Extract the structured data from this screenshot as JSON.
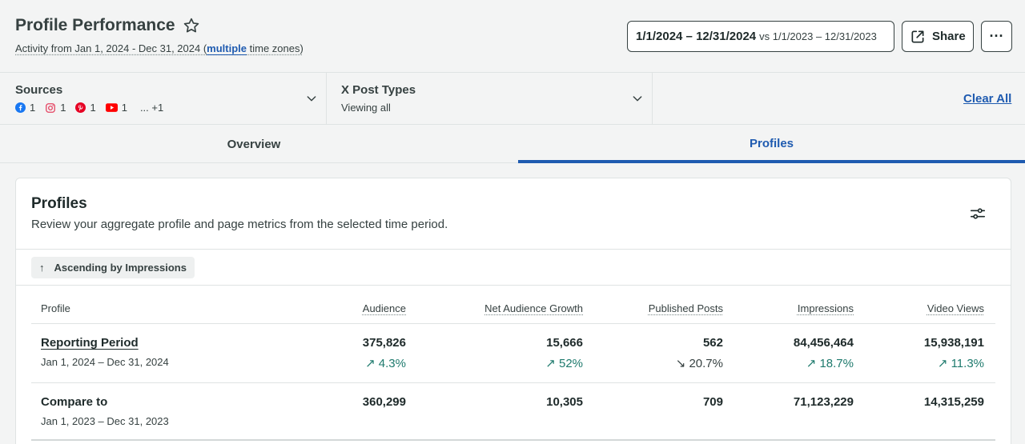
{
  "header": {
    "title": "Profile Performance",
    "subtitle_prefix": "Activity from Jan 1, 2024 - Dec 31, 2024 (",
    "subtitle_link": "multiple",
    "subtitle_suffix": " time zones)",
    "date_range": "1/1/2024 – 12/31/2024",
    "compare_range": "vs 1/1/2023 – 12/31/2023",
    "share_label": "Share",
    "more_label": "···"
  },
  "filters": {
    "sources": {
      "label": "Sources",
      "items": [
        {
          "icon": "facebook-icon",
          "count": "1",
          "color": "#1877f2"
        },
        {
          "icon": "instagram-icon",
          "count": "1",
          "color": "#e4405f"
        },
        {
          "icon": "pinterest-icon",
          "count": "1",
          "color": "#e60023"
        },
        {
          "icon": "youtube-icon",
          "count": "1",
          "color": "#ff0000"
        }
      ],
      "more": "... +1"
    },
    "post_types": {
      "label": "X Post Types",
      "value": "Viewing all"
    },
    "clear_all": "Clear All"
  },
  "tabs": [
    {
      "label": "Overview",
      "active": false
    },
    {
      "label": "Profiles",
      "active": true
    }
  ],
  "card": {
    "title": "Profiles",
    "description": "Review your aggregate profile and page metrics from the selected time period.",
    "sort_label": "Ascending by Impressions",
    "columns": [
      "Profile",
      "Audience",
      "Net Audience Growth",
      "Published Posts",
      "Impressions",
      "Video Views"
    ],
    "rows": [
      {
        "name": "Reporting Period",
        "date": "Jan 1, 2024 – Dec 31, 2024",
        "values": [
          "375,826",
          "15,666",
          "562",
          "84,456,464",
          "15,938,191"
        ],
        "changes": [
          {
            "text": "↗ 4.3%",
            "dir": "up"
          },
          {
            "text": "↗ 52%",
            "dir": "up"
          },
          {
            "text": "↘ 20.7%",
            "dir": "down"
          },
          {
            "text": "↗ 18.7%",
            "dir": "up"
          },
          {
            "text": "↗ 11.3%",
            "dir": "up"
          }
        ]
      },
      {
        "name": "Compare to",
        "date": "Jan 1, 2023 – Dec 31, 2023",
        "values": [
          "360,299",
          "10,305",
          "709",
          "71,123,229",
          "14,315,259"
        ]
      }
    ]
  },
  "colors": {
    "accent": "#1f5bb0",
    "positive": "#1e7a6d",
    "text": "#364141"
  }
}
